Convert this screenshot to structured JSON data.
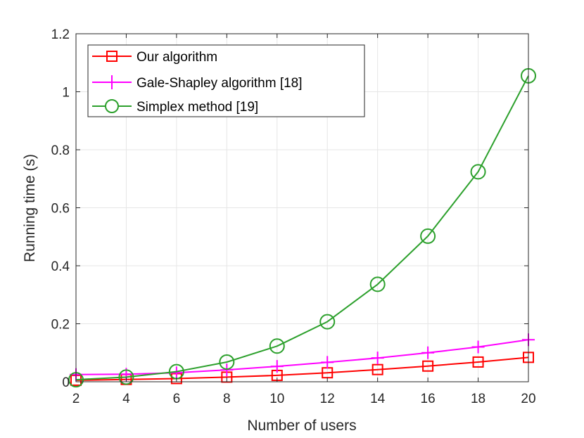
{
  "chart_data": {
    "type": "line",
    "title": "",
    "xlabel": "Number of users",
    "ylabel": "Running time (s)",
    "xlim": [
      2,
      20
    ],
    "ylim": [
      0,
      1.2
    ],
    "xticks": [
      2,
      4,
      6,
      8,
      10,
      12,
      14,
      16,
      18,
      20
    ],
    "xtick_labels": [
      "2",
      "4",
      "6",
      "8",
      "10",
      "12",
      "14",
      "16",
      "18",
      "20"
    ],
    "yticks": [
      0,
      0.2,
      0.4,
      0.6,
      0.8,
      1,
      1.2
    ],
    "ytick_labels": [
      "0",
      "0.2",
      "0.4",
      "0.6",
      "0.8",
      "1",
      "1.2"
    ],
    "grid": true,
    "legend_position": "top-left",
    "x": [
      2,
      4,
      6,
      8,
      10,
      12,
      14,
      16,
      18,
      20
    ],
    "series": [
      {
        "name": "Our algorithm",
        "color": "#ff0000",
        "marker": "square",
        "values": [
          0.005,
          0.008,
          0.011,
          0.016,
          0.022,
          0.031,
          0.042,
          0.054,
          0.068,
          0.084
        ]
      },
      {
        "name": "Gale-Shapley algorithm [18]",
        "color": "#ff00ff",
        "marker": "plus",
        "values": [
          0.025,
          0.026,
          0.031,
          0.041,
          0.053,
          0.067,
          0.082,
          0.1,
          0.12,
          0.145
        ]
      },
      {
        "name": "Simplex method [19]",
        "color": "#2ca02c",
        "marker": "circle",
        "values": [
          0.007,
          0.016,
          0.035,
          0.068,
          0.123,
          0.207,
          0.336,
          0.502,
          0.724,
          1.055
        ]
      }
    ]
  }
}
